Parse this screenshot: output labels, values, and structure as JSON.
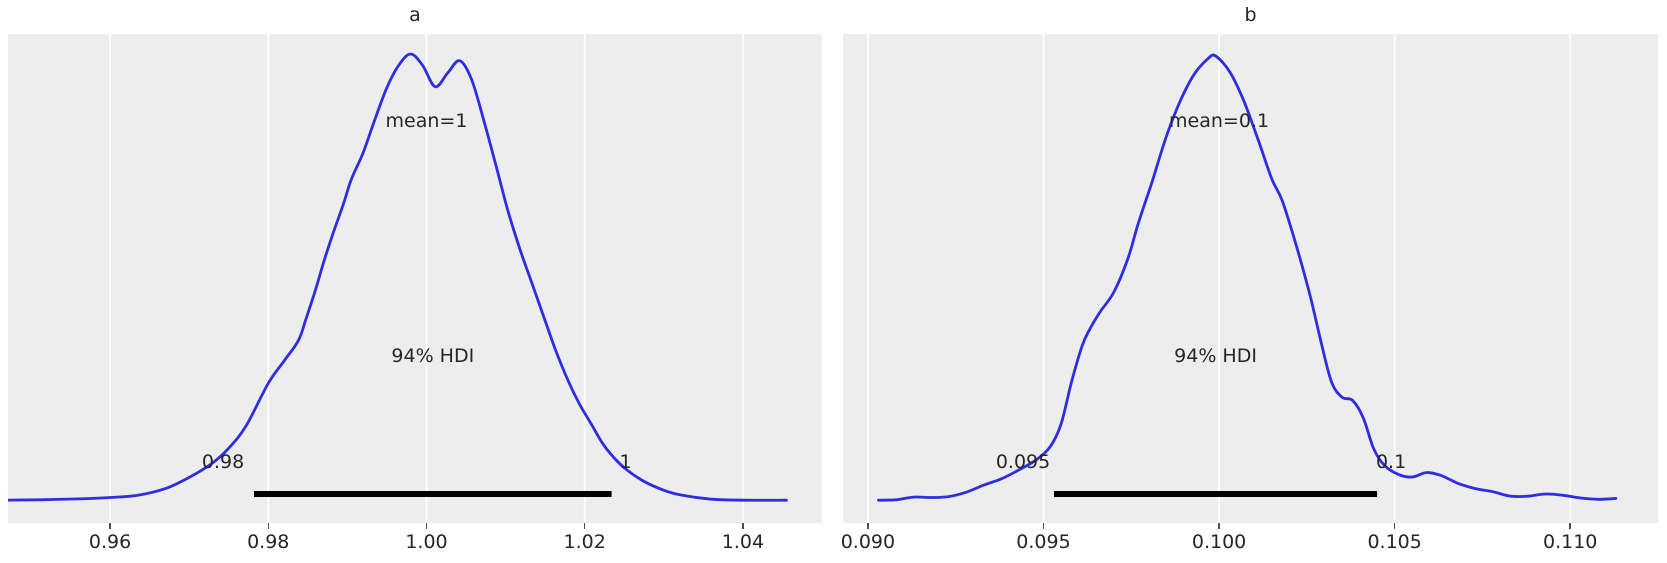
{
  "figure_style": {
    "background": "#ffffff",
    "plot_background": "#ededed",
    "grid_color": "#ffffff",
    "curve_color": "#2d2de1",
    "hdi_line_color": "#000000",
    "text_color": "#262626"
  },
  "chart_data": [
    {
      "type": "kde",
      "title": "a",
      "mean": 1,
      "mean_label": "mean=1",
      "hdi_label": "94% HDI",
      "hdi_probability": 0.94,
      "hdi_lower_label": "0.98",
      "hdi_upper_label": "1",
      "hdi_interval": [
        0.9782,
        1.0234
      ],
      "xlim": [
        0.9471,
        1.05
      ],
      "x_tick_values": [
        0.96,
        0.98,
        1.0,
        1.02,
        1.04
      ],
      "x_tick_labels": [
        "0.96",
        "0.98",
        "1.00",
        "1.02",
        "1.04"
      ],
      "grid": true,
      "density_normalized": true,
      "points": [
        [
          0.9465,
          0.004
        ],
        [
          0.951,
          0.005
        ],
        [
          0.956,
          0.007
        ],
        [
          0.96,
          0.01
        ],
        [
          0.9635,
          0.015
        ],
        [
          0.967,
          0.03
        ],
        [
          0.97,
          0.055
        ],
        [
          0.9728,
          0.085
        ],
        [
          0.975,
          0.12
        ],
        [
          0.9772,
          0.17
        ],
        [
          0.98,
          0.265
        ],
        [
          0.982,
          0.315
        ],
        [
          0.9838,
          0.36
        ],
        [
          0.9848,
          0.41
        ],
        [
          0.986,
          0.475
        ],
        [
          0.987,
          0.535
        ],
        [
          0.9882,
          0.6
        ],
        [
          0.9895,
          0.665
        ],
        [
          0.9905,
          0.72
        ],
        [
          0.992,
          0.78
        ],
        [
          0.9935,
          0.855
        ],
        [
          0.995,
          0.925
        ],
        [
          0.9965,
          0.975
        ],
        [
          0.998,
          1.0
        ],
        [
          0.9995,
          0.975
        ],
        [
          1.0011,
          0.927
        ],
        [
          1.0027,
          0.958
        ],
        [
          1.0042,
          0.985
        ],
        [
          1.0057,
          0.943
        ],
        [
          1.0072,
          0.855
        ],
        [
          1.0088,
          0.75
        ],
        [
          1.0103,
          0.65
        ],
        [
          1.0118,
          0.565
        ],
        [
          1.0133,
          0.49
        ],
        [
          1.0148,
          0.415
        ],
        [
          1.0163,
          0.34
        ],
        [
          1.0178,
          0.275
        ],
        [
          1.0193,
          0.22
        ],
        [
          1.0208,
          0.175
        ],
        [
          1.0223,
          0.13
        ],
        [
          1.0238,
          0.097
        ],
        [
          1.0253,
          0.072
        ],
        [
          1.0273,
          0.048
        ],
        [
          1.0293,
          0.031
        ],
        [
          1.0313,
          0.019
        ],
        [
          1.0338,
          0.011
        ],
        [
          1.0363,
          0.006
        ],
        [
          1.04,
          0.004
        ],
        [
          1.0455,
          0.004
        ]
      ]
    },
    {
      "type": "kde",
      "title": "b",
      "mean": 0.1,
      "mean_label": "mean=0.1",
      "hdi_label": "94% HDI",
      "hdi_probability": 0.94,
      "hdi_lower_label": "0.095",
      "hdi_upper_label": "0.1",
      "hdi_interval": [
        0.0953,
        0.1045
      ],
      "xlim": [
        0.08929,
        0.1125
      ],
      "x_tick_values": [
        0.09,
        0.095,
        0.1,
        0.105,
        0.11
      ],
      "x_tick_labels": [
        "0.090",
        "0.095",
        "0.100",
        "0.105",
        "0.110"
      ],
      "grid": true,
      "density_normalized": true,
      "points": [
        [
          0.0903,
          0.004
        ],
        [
          0.0908,
          0.005
        ],
        [
          0.0913,
          0.011
        ],
        [
          0.0918,
          0.01
        ],
        [
          0.0923,
          0.012
        ],
        [
          0.0928,
          0.022
        ],
        [
          0.0933,
          0.038
        ],
        [
          0.0938,
          0.052
        ],
        [
          0.0943,
          0.072
        ],
        [
          0.0948,
          0.095
        ],
        [
          0.0952,
          0.125
        ],
        [
          0.0955,
          0.175
        ],
        [
          0.0958,
          0.27
        ],
        [
          0.0961,
          0.35
        ],
        [
          0.0963,
          0.385
        ],
        [
          0.0966,
          0.425
        ],
        [
          0.097,
          0.47
        ],
        [
          0.0974,
          0.545
        ],
        [
          0.0977,
          0.625
        ],
        [
          0.0981,
          0.72
        ],
        [
          0.0985,
          0.82
        ],
        [
          0.0989,
          0.9
        ],
        [
          0.0993,
          0.96
        ],
        [
          0.0997,
          0.995
        ],
        [
          0.0999,
          1.0
        ],
        [
          0.1003,
          0.965
        ],
        [
          0.1007,
          0.9
        ],
        [
          0.1011,
          0.815
        ],
        [
          0.1015,
          0.725
        ],
        [
          0.1018,
          0.675
        ],
        [
          0.1022,
          0.575
        ],
        [
          0.1026,
          0.46
        ],
        [
          0.1029,
          0.36
        ],
        [
          0.1032,
          0.27
        ],
        [
          0.1035,
          0.235
        ],
        [
          0.1038,
          0.228
        ],
        [
          0.1041,
          0.19
        ],
        [
          0.1044,
          0.12
        ],
        [
          0.1047,
          0.083
        ],
        [
          0.1051,
          0.062
        ],
        [
          0.1055,
          0.056
        ],
        [
          0.1059,
          0.066
        ],
        [
          0.1063,
          0.06
        ],
        [
          0.1068,
          0.042
        ],
        [
          0.1073,
          0.03
        ],
        [
          0.1078,
          0.023
        ],
        [
          0.1083,
          0.013
        ],
        [
          0.1088,
          0.013
        ],
        [
          0.1093,
          0.018
        ],
        [
          0.1098,
          0.015
        ],
        [
          0.1103,
          0.009
        ],
        [
          0.1108,
          0.006
        ],
        [
          0.1113,
          0.008
        ]
      ]
    }
  ]
}
